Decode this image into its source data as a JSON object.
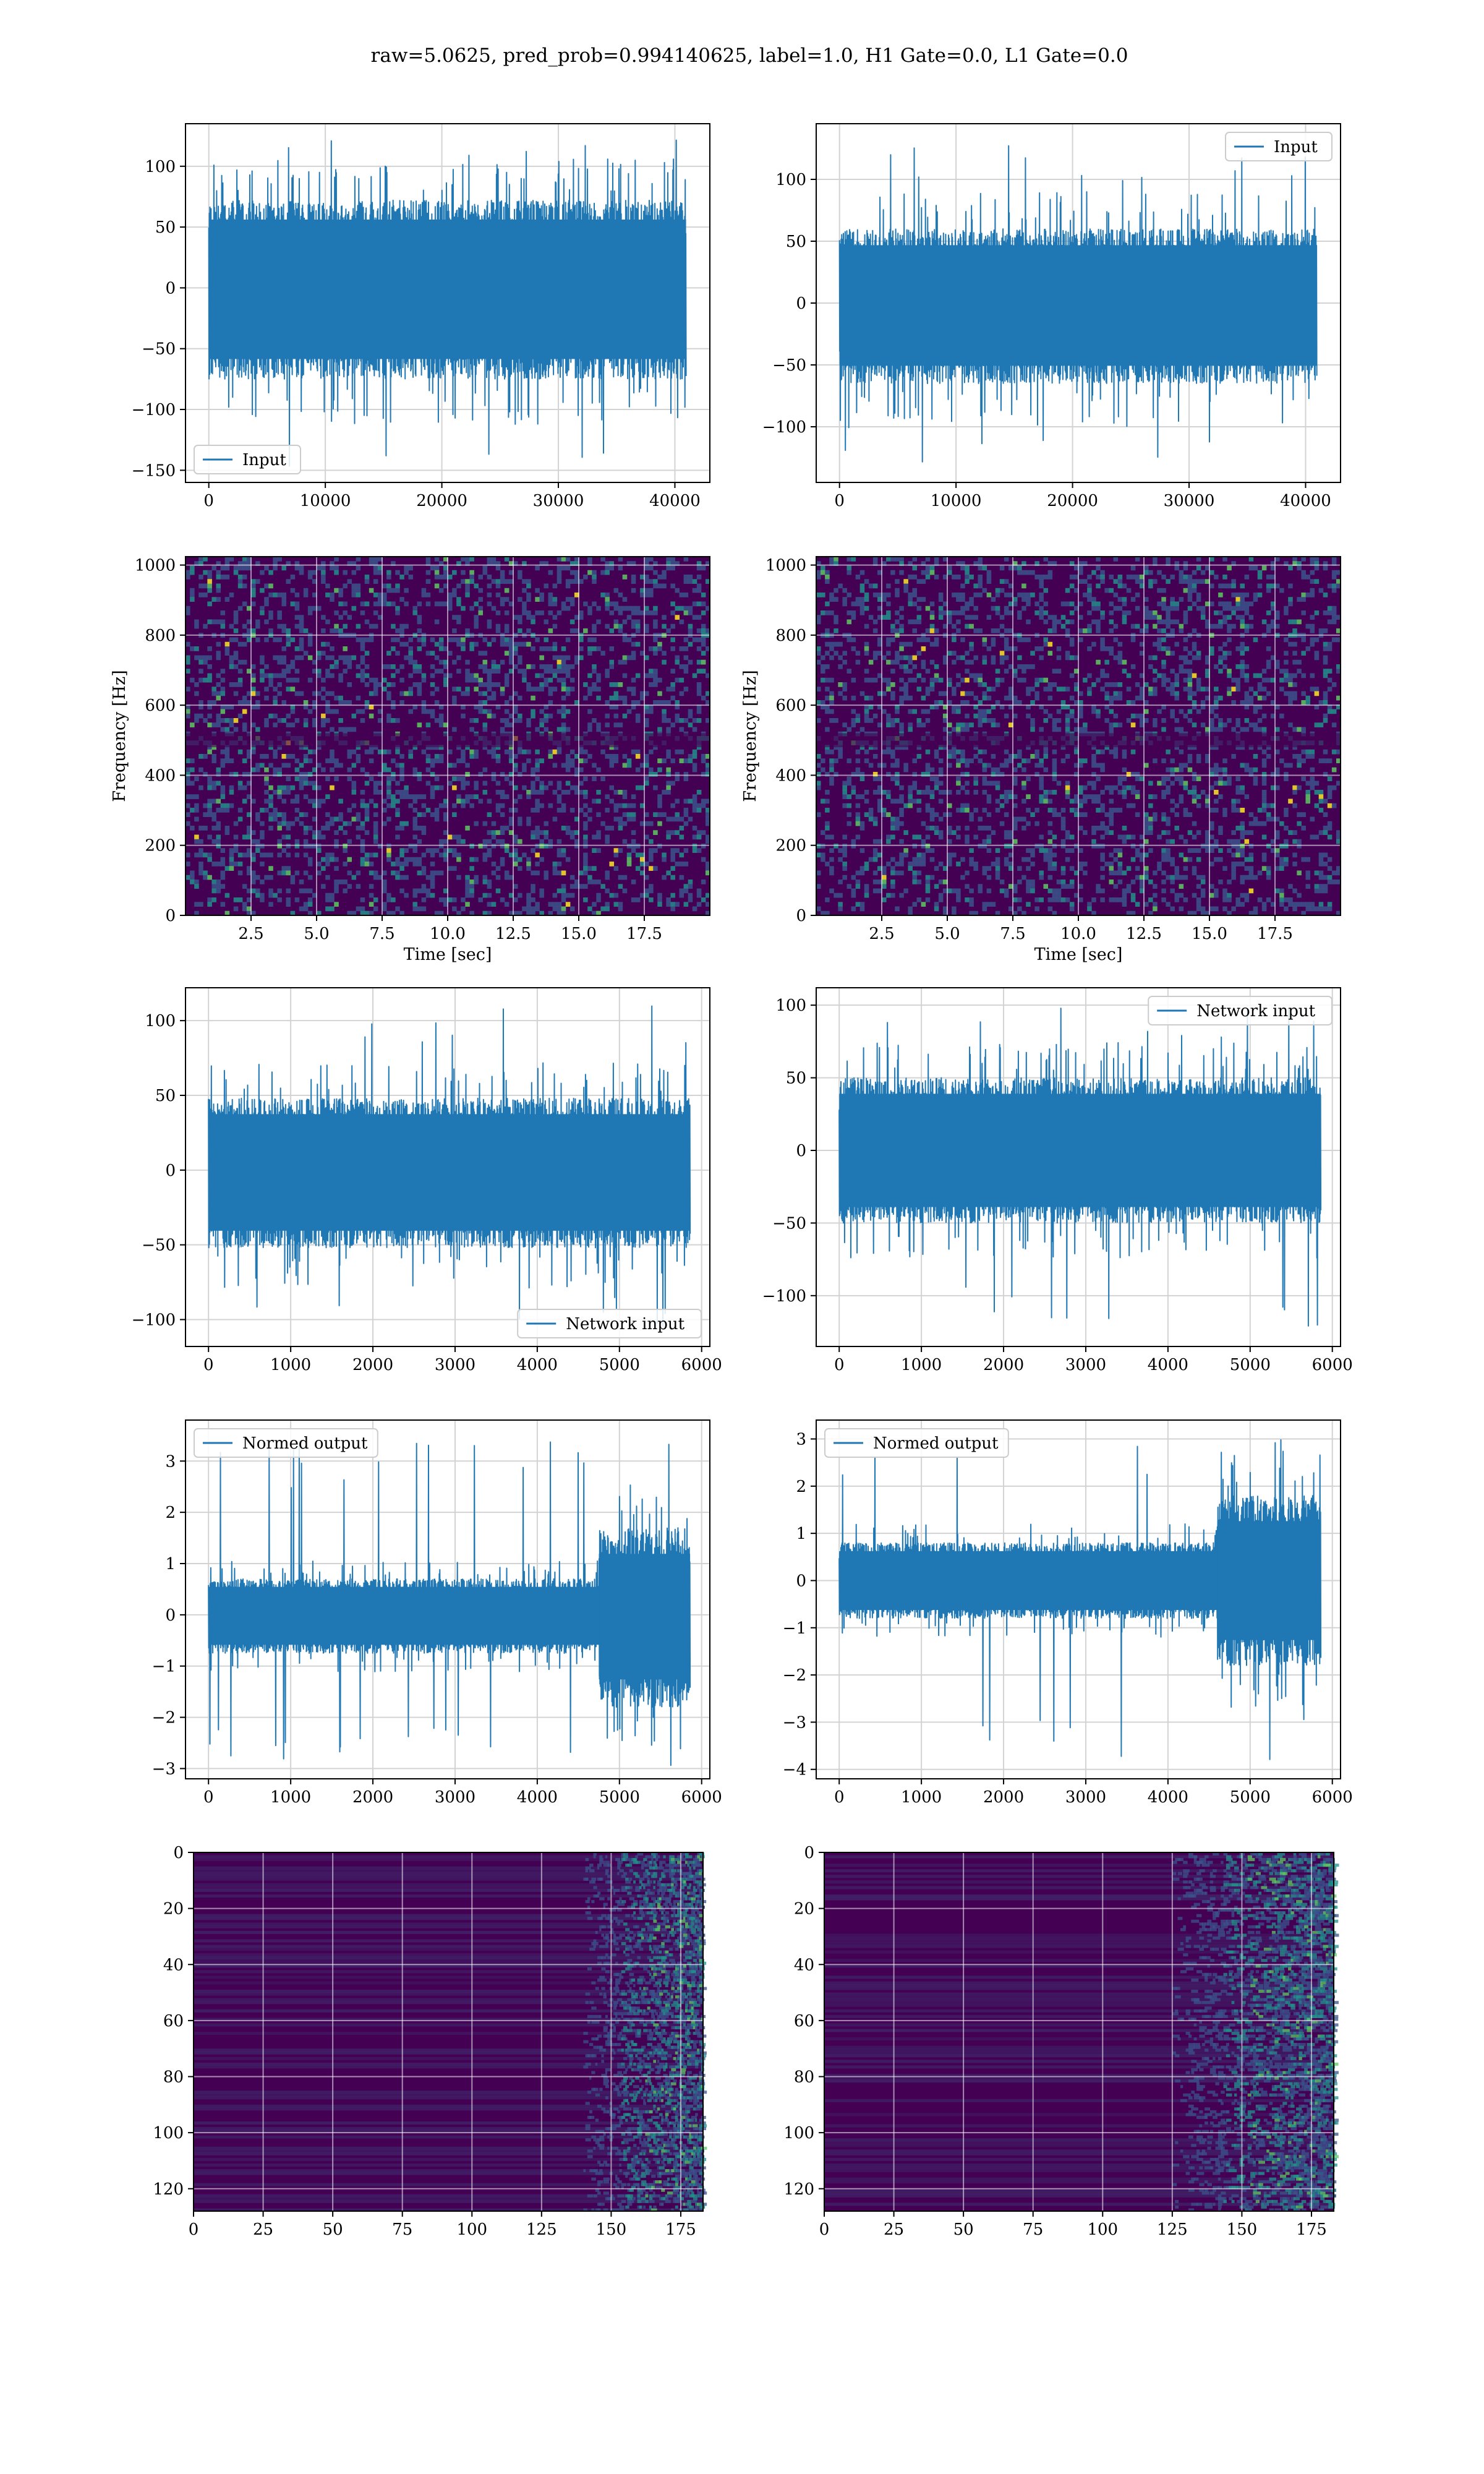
{
  "figure": {
    "suptitle": "raw=5.0625, pred_prob=0.994140625, label=1.0, H1 Gate=0.0, L1 Gate=0.0",
    "line_color": "#1f77b4",
    "spectrogram_palette": [
      "#440154",
      "#3b528b",
      "#21918c",
      "#5ec962",
      "#fde725"
    ]
  },
  "chart_data": [
    {
      "id": "input-h1",
      "type": "line",
      "legend": [
        "Input"
      ],
      "legend_loc": "lower-left",
      "xlim": [
        -2000,
        43000
      ],
      "ylim": [
        -160,
        135
      ],
      "xticks": [
        0,
        10000,
        20000,
        30000,
        40000
      ],
      "yticks": [
        -150,
        -100,
        -50,
        0,
        50,
        100
      ],
      "x_range": [
        0,
        40960
      ],
      "envelope": [
        -75,
        72
      ],
      "extremes": [
        -150,
        122
      ],
      "grid": true,
      "xlabel": "",
      "ylabel": ""
    },
    {
      "id": "input-l1",
      "type": "line",
      "legend": [
        "Input"
      ],
      "legend_loc": "upper-right",
      "xlim": [
        -2000,
        43000
      ],
      "ylim": [
        -145,
        145
      ],
      "xticks": [
        0,
        10000,
        20000,
        30000,
        40000
      ],
      "yticks": [
        -100,
        -50,
        0,
        50,
        100
      ],
      "x_range": [
        0,
        40960
      ],
      "envelope": [
        -65,
        60
      ],
      "extremes": [
        -130,
        132
      ],
      "grid": true,
      "xlabel": "",
      "ylabel": ""
    },
    {
      "id": "spectrogram-h1",
      "type": "heatmap",
      "xlim": [
        0,
        20
      ],
      "ylim": [
        0,
        1024
      ],
      "xticks": [
        2.5,
        5.0,
        7.5,
        10.0,
        12.5,
        15.0,
        17.5
      ],
      "yticks": [
        0,
        200,
        400,
        600,
        800,
        1000
      ],
      "xlabel": "Time [sec]",
      "ylabel": "Frequency [Hz]",
      "colormap": "viridis",
      "grid": true
    },
    {
      "id": "spectrogram-l1",
      "type": "heatmap",
      "xlim": [
        0,
        20
      ],
      "ylim": [
        0,
        1024
      ],
      "xticks": [
        2.5,
        5.0,
        7.5,
        10.0,
        12.5,
        15.0,
        17.5
      ],
      "yticks": [
        0,
        200,
        400,
        600,
        800,
        1000
      ],
      "xlabel": "Time [sec]",
      "ylabel": "Frequency [Hz]",
      "colormap": "viridis",
      "grid": true
    },
    {
      "id": "network-input-h1",
      "type": "line",
      "legend": [
        "Network input"
      ],
      "legend_loc": "lower-right",
      "xlim": [
        -280,
        6100
      ],
      "ylim": [
        -118,
        122
      ],
      "xticks": [
        0,
        1000,
        2000,
        3000,
        4000,
        5000,
        6000
      ],
      "yticks": [
        -100,
        -50,
        0,
        50,
        100
      ],
      "x_range": [
        0,
        5860
      ],
      "envelope": [
        -52,
        48
      ],
      "extremes": [
        -105,
        110
      ],
      "grid": true,
      "xlabel": "",
      "ylabel": ""
    },
    {
      "id": "network-input-l1",
      "type": "line",
      "legend": [
        "Network input"
      ],
      "legend_loc": "upper-right",
      "xlim": [
        -280,
        6100
      ],
      "ylim": [
        -135,
        112
      ],
      "xticks": [
        0,
        1000,
        2000,
        3000,
        4000,
        5000,
        6000
      ],
      "yticks": [
        -100,
        -50,
        0,
        50,
        100
      ],
      "x_range": [
        0,
        5860
      ],
      "envelope": [
        -50,
        50
      ],
      "extremes": [
        -122,
        98
      ],
      "grid": true,
      "xlabel": "",
      "ylabel": ""
    },
    {
      "id": "normed-output-h1",
      "type": "line",
      "legend": [
        "Normed output"
      ],
      "legend_loc": "upper-left",
      "xlim": [
        -280,
        6100
      ],
      "ylim": [
        -3.2,
        3.8
      ],
      "xticks": [
        0,
        1000,
        2000,
        3000,
        4000,
        5000,
        6000
      ],
      "yticks": [
        -3,
        -2,
        -1,
        0,
        1,
        2,
        3
      ],
      "x_range": [
        0,
        5860
      ],
      "envelope": [
        -0.75,
        0.7
      ],
      "burst_from": 4750,
      "burst_envelope": [
        -1.8,
        1.7
      ],
      "extremes": [
        -3.0,
        3.5
      ],
      "grid": true,
      "xlabel": "",
      "ylabel": ""
    },
    {
      "id": "normed-output-l1",
      "type": "line",
      "legend": [
        "Normed output"
      ],
      "legend_loc": "upper-left",
      "xlim": [
        -280,
        6100
      ],
      "ylim": [
        -4.2,
        3.4
      ],
      "xticks": [
        0,
        1000,
        2000,
        3000,
        4000,
        5000,
        6000
      ],
      "yticks": [
        -4,
        -3,
        -2,
        -1,
        0,
        1,
        2,
        3
      ],
      "x_range": [
        0,
        5860
      ],
      "envelope": [
        -0.8,
        0.8
      ],
      "burst_from": 4600,
      "burst_envelope": [
        -1.8,
        1.8
      ],
      "extremes": [
        -3.8,
        3.0
      ],
      "grid": true,
      "xlabel": "",
      "ylabel": ""
    },
    {
      "id": "feature-map-h1",
      "type": "heatmap",
      "xlim": [
        0,
        183
      ],
      "ylim": [
        128,
        0
      ],
      "xticks": [
        0,
        25,
        50,
        75,
        100,
        125,
        150,
        175
      ],
      "yticks": [
        0,
        20,
        40,
        60,
        80,
        100,
        120
      ],
      "active_from": 140,
      "colormap": "viridis",
      "grid": true,
      "xlabel": "",
      "ylabel": ""
    },
    {
      "id": "feature-map-l1",
      "type": "heatmap",
      "xlim": [
        0,
        183
      ],
      "ylim": [
        128,
        0
      ],
      "xticks": [
        0,
        25,
        50,
        75,
        100,
        125,
        150,
        175
      ],
      "yticks": [
        0,
        20,
        40,
        60,
        80,
        100,
        120
      ],
      "active_from": 125,
      "colormap": "viridis",
      "grid": true,
      "xlabel": "",
      "ylabel": ""
    }
  ]
}
